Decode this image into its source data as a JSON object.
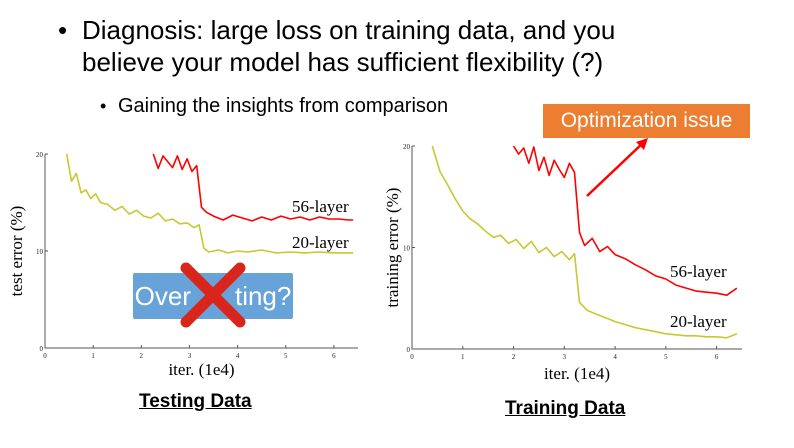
{
  "bullets": {
    "main_line1": "Diagnosis: large loss on training data, and you",
    "main_line2": "believe your model has sufficient flexibility (?)",
    "sub": "Gaining the insights from comparison",
    "bullet_char": "•"
  },
  "callout": {
    "optimization_issue": "Optimization issue",
    "color": "#ed7d31",
    "arrow_color": "#ff0000"
  },
  "overfitting_badge": {
    "text": "Overfitting?",
    "visible_text_left": "Over",
    "visible_text_right": "ting?",
    "color": "#5b9bd5",
    "cross_color": "#d9261c"
  },
  "captions": {
    "testing": "Testing Data",
    "training": "Training Data"
  },
  "chart_data": [
    {
      "type": "line",
      "xlabel": "iter. (1e4)",
      "ylabel": "test error (%)",
      "x_ticks": [
        0,
        1,
        2,
        3,
        4,
        5,
        6
      ],
      "y_ticks": [
        0,
        10,
        20
      ],
      "xlim": [
        0,
        6.5
      ],
      "ylim": [
        0,
        20
      ],
      "series": [
        {
          "name": "56-layer",
          "color": "#ff0000",
          "x": [
            2.25,
            2.35,
            2.45,
            2.55,
            2.65,
            2.75,
            2.85,
            2.95,
            3.05,
            3.15,
            3.25,
            3.35,
            3.5,
            3.7,
            3.9,
            4.1,
            4.3,
            4.5,
            4.7,
            4.9,
            5.1,
            5.3,
            5.5,
            5.7,
            5.9,
            6.1,
            6.3,
            6.4
          ],
          "y": [
            20,
            18.5,
            19.8,
            19.2,
            18.6,
            19.8,
            18.4,
            19.5,
            18.2,
            18.8,
            14.5,
            14.0,
            13.6,
            13.2,
            13.7,
            13.4,
            13.1,
            13.5,
            13.2,
            13.6,
            13.3,
            13.5,
            13.2,
            13.5,
            13.3,
            13.3,
            13.2,
            13.2
          ]
        },
        {
          "name": "20-layer",
          "color": "#c8c832",
          "x": [
            0.45,
            0.55,
            0.65,
            0.75,
            0.85,
            0.95,
            1.05,
            1.15,
            1.3,
            1.45,
            1.6,
            1.75,
            1.9,
            2.05,
            2.2,
            2.35,
            2.5,
            2.65,
            2.8,
            2.95,
            3.1,
            3.2,
            3.3,
            3.4,
            3.6,
            3.8,
            4.0,
            4.2,
            4.5,
            4.8,
            5.1,
            5.4,
            5.7,
            6.0,
            6.3,
            6.4
          ],
          "y": [
            20,
            17.2,
            18.0,
            16.0,
            16.3,
            15.4,
            15.9,
            15.0,
            14.8,
            14.2,
            14.6,
            13.8,
            14.2,
            13.6,
            13.4,
            13.9,
            13.1,
            13.3,
            12.8,
            12.9,
            12.4,
            12.7,
            10.3,
            9.9,
            10.1,
            9.8,
            10.0,
            9.9,
            10.1,
            9.8,
            9.9,
            9.8,
            9.9,
            9.8,
            9.8,
            9.8
          ]
        }
      ]
    },
    {
      "type": "line",
      "xlabel": "iter. (1e4)",
      "ylabel": "training error (%)",
      "x_ticks": [
        0,
        1,
        2,
        3,
        4,
        5,
        6
      ],
      "y_ticks": [
        0,
        10,
        20
      ],
      "xlim": [
        0,
        6.5
      ],
      "ylim": [
        0,
        20
      ],
      "series": [
        {
          "name": "56-layer",
          "color": "#ff0000",
          "x": [
            2.0,
            2.1,
            2.2,
            2.3,
            2.4,
            2.5,
            2.6,
            2.7,
            2.8,
            2.9,
            3.0,
            3.1,
            3.2,
            3.3,
            3.4,
            3.55,
            3.7,
            3.85,
            4.0,
            4.2,
            4.4,
            4.6,
            4.8,
            5.0,
            5.2,
            5.4,
            5.6,
            5.8,
            6.0,
            6.2,
            6.4
          ],
          "y": [
            20,
            19.2,
            19.8,
            18.3,
            19.9,
            17.6,
            18.9,
            17.1,
            18.6,
            17.7,
            16.9,
            18.3,
            17.4,
            11.5,
            10.2,
            10.9,
            9.6,
            10.1,
            9.3,
            8.9,
            8.3,
            7.8,
            7.2,
            6.9,
            6.3,
            6.0,
            5.7,
            5.6,
            5.5,
            5.3,
            6.0
          ]
        },
        {
          "name": "20-layer",
          "color": "#c8c832",
          "x": [
            0.4,
            0.55,
            0.7,
            0.85,
            1.0,
            1.15,
            1.3,
            1.45,
            1.6,
            1.75,
            1.9,
            2.05,
            2.2,
            2.35,
            2.5,
            2.65,
            2.8,
            2.95,
            3.1,
            3.2,
            3.3,
            3.45,
            3.6,
            3.8,
            4.0,
            4.2,
            4.4,
            4.6,
            4.8,
            5.0,
            5.2,
            5.4,
            5.6,
            5.8,
            6.0,
            6.2,
            6.4
          ],
          "y": [
            20,
            17.5,
            16.2,
            14.8,
            13.6,
            12.8,
            12.3,
            11.6,
            11.0,
            11.2,
            10.4,
            10.8,
            9.9,
            10.6,
            9.5,
            10.0,
            9.1,
            9.6,
            8.8,
            9.4,
            4.6,
            3.8,
            3.5,
            3.1,
            2.7,
            2.4,
            2.1,
            1.9,
            1.7,
            1.5,
            1.4,
            1.3,
            1.3,
            1.2,
            1.2,
            1.1,
            1.5
          ]
        }
      ]
    }
  ]
}
